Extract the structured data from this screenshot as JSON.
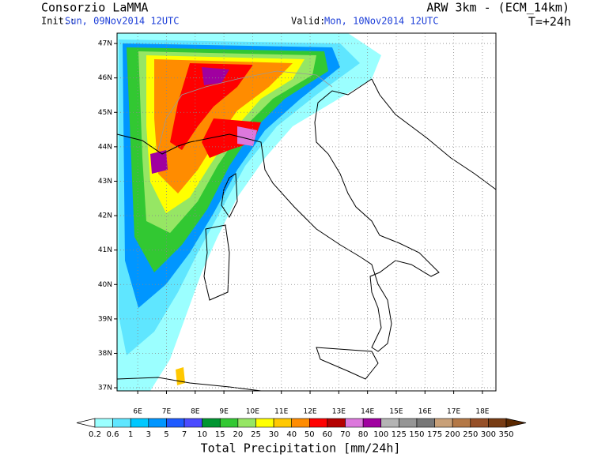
{
  "header": {
    "title": "Consorzio LaMMA",
    "init_label": "Init.:",
    "init_time": "Sun, 09Nov2014 12UTC",
    "valid_label": "Valid:",
    "valid_time": "Mon, 10Nov2014 12UTC",
    "model": "ARW 3km - (ECM_14km)",
    "lead_time": "T=+24h"
  },
  "map": {
    "lon_range": [
      5.28,
      18.47
    ],
    "lat_range": [
      36.91,
      47.3
    ],
    "lat_ticks": [
      {
        "value": 47,
        "label": "47N"
      },
      {
        "value": 46,
        "label": "46N"
      },
      {
        "value": 45,
        "label": "45N"
      },
      {
        "value": 44,
        "label": "44N"
      },
      {
        "value": 43,
        "label": "43N"
      },
      {
        "value": 42,
        "label": "42N"
      },
      {
        "value": 41,
        "label": "41N"
      },
      {
        "value": 40,
        "label": "40N"
      },
      {
        "value": 39,
        "label": "39N"
      },
      {
        "value": 38,
        "label": "38N"
      },
      {
        "value": 37,
        "label": "37N"
      }
    ],
    "lon_ticks": [
      {
        "value": 6,
        "label": "6E"
      },
      {
        "value": 7,
        "label": "7E"
      },
      {
        "value": 8,
        "label": "8E"
      },
      {
        "value": 9,
        "label": "9E"
      },
      {
        "value": 10,
        "label": "10E"
      },
      {
        "value": 11,
        "label": "11E"
      },
      {
        "value": 12,
        "label": "12E"
      },
      {
        "value": 13,
        "label": "13E"
      },
      {
        "value": 14,
        "label": "14E"
      },
      {
        "value": 15,
        "label": "15E"
      },
      {
        "value": 16,
        "label": "16E"
      },
      {
        "value": 17,
        "label": "17E"
      },
      {
        "value": 18,
        "label": "18E"
      }
    ]
  },
  "colorbar": {
    "title": "Total Precipitation [mm/24h]",
    "levels": [
      0.2,
      0.6,
      1,
      3,
      5,
      7,
      10,
      15,
      20,
      25,
      30,
      40,
      50,
      60,
      70,
      80,
      100,
      125,
      150,
      175,
      200,
      250,
      300,
      350
    ],
    "colors": [
      "#ffffff",
      "#9bffff",
      "#5fe6ff",
      "#00c8ff",
      "#0096ff",
      "#1e5aff",
      "#4b4bff",
      "#009632",
      "#32c832",
      "#96e664",
      "#ffff00",
      "#ffc800",
      "#ff8c00",
      "#ff0000",
      "#b40000",
      "#dc78dc",
      "#a000a0",
      "#b4b4b4",
      "#969696",
      "#787878",
      "#c8a078",
      "#b47846",
      "#965028",
      "#783c14",
      "#5a2800"
    ]
  }
}
